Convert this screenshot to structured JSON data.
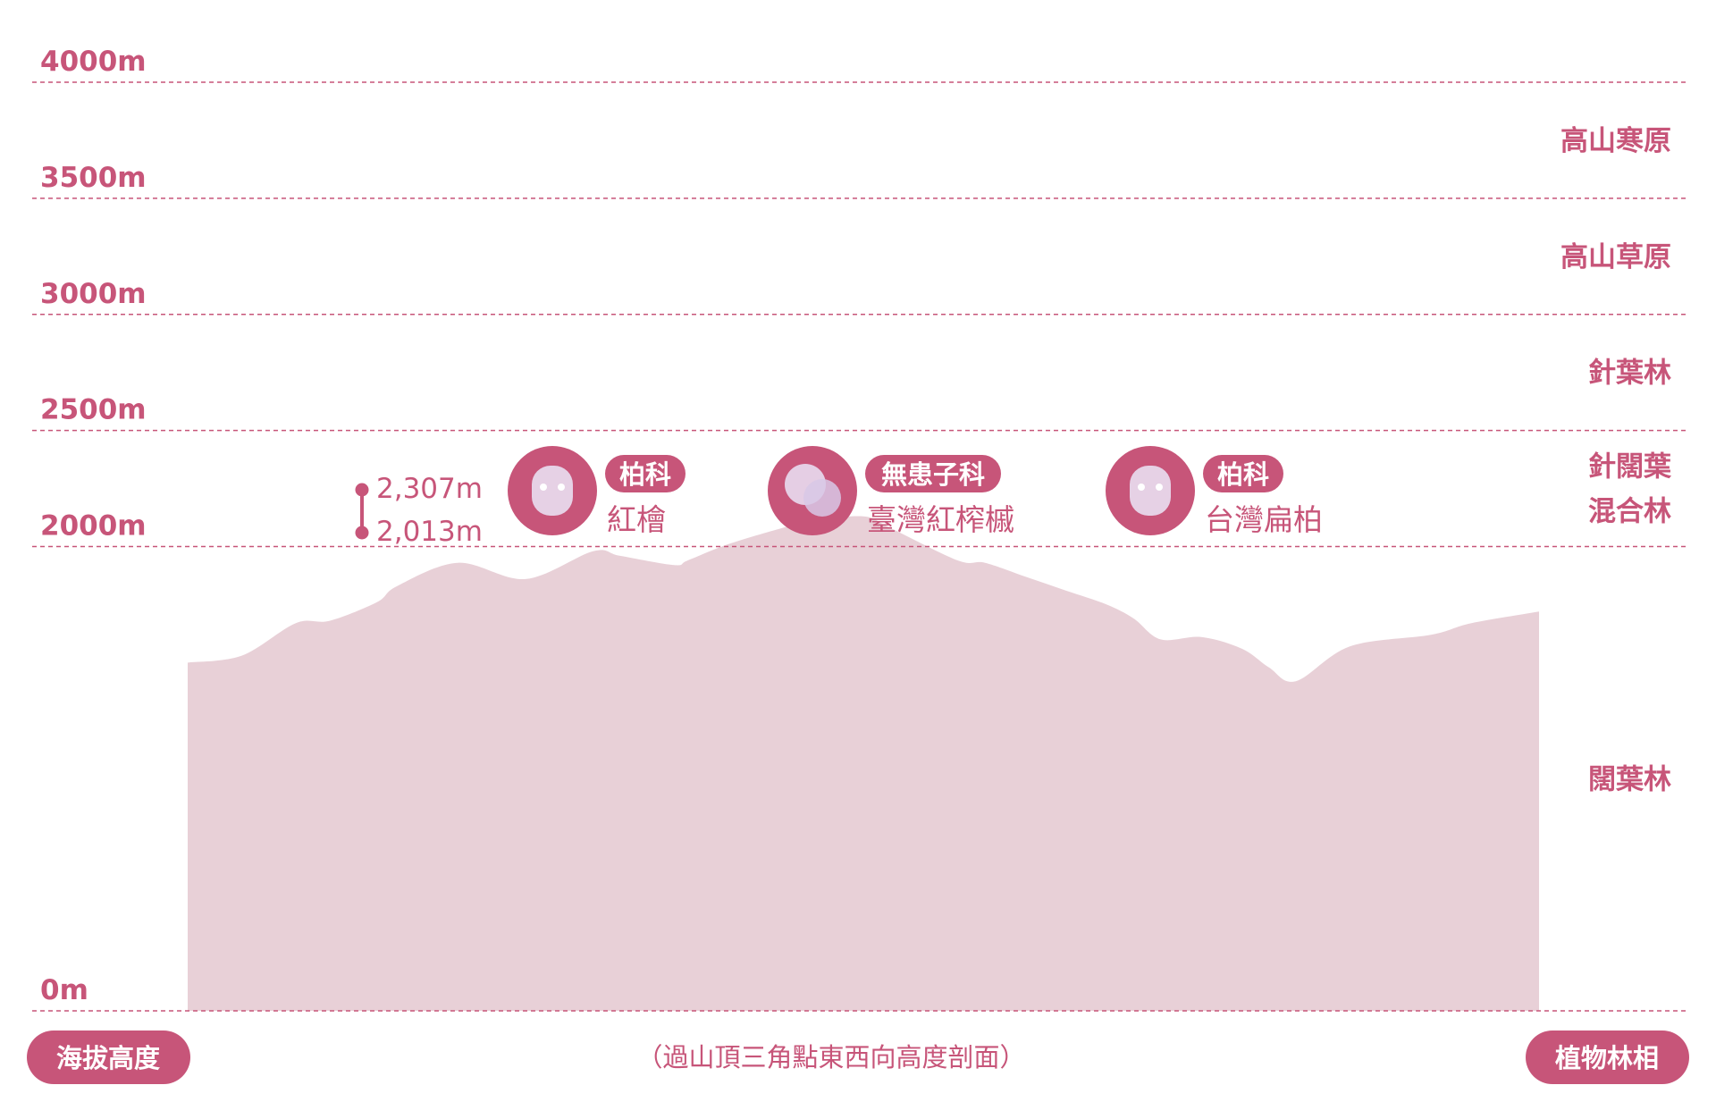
{
  "chart_data": {
    "type": "area",
    "ylabel": "海拔高度",
    "y2label": "植物林相",
    "caption": "（過山頂三角點東西向高度剖面）",
    "ylim": [
      0,
      4000
    ],
    "yticks": [
      {
        "value": 0,
        "label": "0m"
      },
      {
        "value": 2000,
        "label": "2000m"
      },
      {
        "value": 2500,
        "label": "2500m"
      },
      {
        "value": 3000,
        "label": "3000m"
      },
      {
        "value": 3500,
        "label": "3500m"
      },
      {
        "value": 4000,
        "label": "4000m"
      }
    ],
    "zones": [
      {
        "label": "高山寒原",
        "lines": [
          "高山寒原"
        ],
        "from": 3500,
        "to": 4000
      },
      {
        "label": "高山草原",
        "lines": [
          "高山草原"
        ],
        "from": 3000,
        "to": 3500
      },
      {
        "label": "針葉林",
        "lines": [
          "針葉林"
        ],
        "from": 2500,
        "to": 3000
      },
      {
        "label": "針闊葉混合林",
        "lines": [
          "針闊葉",
          "混合林"
        ],
        "from": 2000,
        "to": 2500
      },
      {
        "label": "闊葉林",
        "lines": [
          "闊葉林"
        ],
        "from": 0,
        "to": 2000
      }
    ],
    "profile": {
      "x": [
        0,
        0.04,
        0.08,
        0.105,
        0.14,
        0.155,
        0.2,
        0.25,
        0.3,
        0.32,
        0.36,
        0.37,
        0.4,
        0.44,
        0.46,
        0.5,
        0.52,
        0.57,
        0.59,
        0.62,
        0.65,
        0.68,
        0.7,
        0.72,
        0.75,
        0.78,
        0.8,
        0.82,
        0.86,
        0.92,
        0.95,
        1.0
      ],
      "elevation": [
        1500,
        1530,
        1670,
        1680,
        1760,
        1830,
        1930,
        1860,
        1980,
        1960,
        1920,
        1940,
        2010,
        2080,
        2110,
        2130,
        2080,
        1940,
        1930,
        1870,
        1810,
        1750,
        1690,
        1600,
        1610,
        1560,
        1480,
        1420,
        1570,
        1620,
        1670,
        1720
      ]
    },
    "elevation_range": {
      "max": 2307,
      "max_label": "2,307m",
      "min": 2013,
      "min_label": "2,013m"
    },
    "species": [
      {
        "family": "柏科",
        "name": "紅檜"
      },
      {
        "family": "無患子科",
        "name": "臺灣紅榨槭"
      },
      {
        "family": "柏科",
        "name": "台灣扁柏"
      }
    ],
    "colors": {
      "accent": "#c75579",
      "area_fill": "#e8d0d7",
      "icon_inner": "#e8dcef",
      "white": "#ffffff"
    }
  }
}
